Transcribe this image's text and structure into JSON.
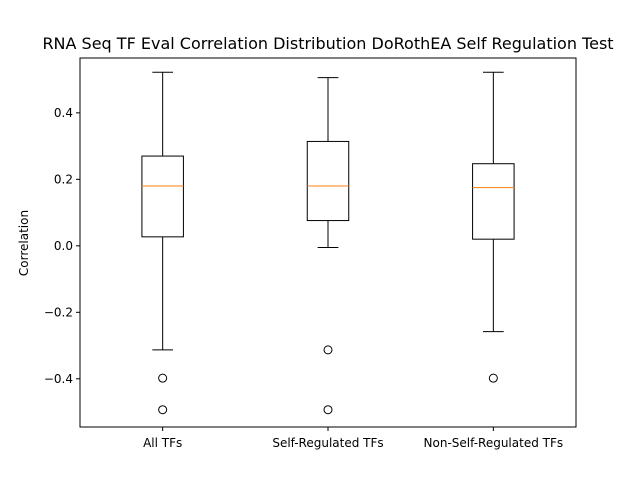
{
  "chart_data": {
    "type": "box",
    "title": "RNA Seq TF Eval Correlation Distribution DoRothEA Self Regulation Test",
    "xlabel": "",
    "ylabel": "Correlation",
    "ylim": [
      -0.545,
      0.565
    ],
    "yticks": [
      0.4,
      0.2,
      0.0,
      -0.2,
      -0.4
    ],
    "ytick_labels": [
      "0.4",
      "0.2",
      "0.0",
      "−0.2",
      "−0.4"
    ],
    "grid": false,
    "categories": [
      "All TFs",
      "Self-Regulated TFs",
      "Non-Self-Regulated TFs"
    ],
    "boxes": [
      {
        "category": "All TFs",
        "whisker_low": -0.313,
        "q1": 0.027,
        "median": 0.18,
        "q3": 0.27,
        "whisker_high": 0.522,
        "outliers": [
          -0.398,
          -0.493
        ]
      },
      {
        "category": "Self-Regulated TFs",
        "whisker_low": -0.005,
        "q1": 0.076,
        "median": 0.18,
        "q3": 0.314,
        "whisker_high": 0.506,
        "outliers": [
          -0.313,
          -0.493
        ]
      },
      {
        "category": "Non-Self-Regulated TFs",
        "whisker_low": -0.258,
        "q1": 0.02,
        "median": 0.175,
        "q3": 0.247,
        "whisker_high": 0.522,
        "outliers": [
          -0.398
        ]
      }
    ],
    "colors": {
      "box": "#000000",
      "median": "#ff7f0e",
      "outlier": "#000000"
    }
  }
}
